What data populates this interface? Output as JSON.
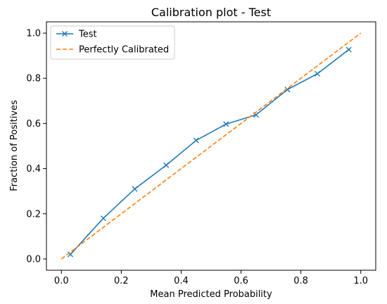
{
  "chart_data": {
    "type": "line",
    "title": "Calibration plot - Test",
    "xlabel": "Mean Predicted Probability",
    "ylabel": "Fraction of Positives",
    "xlim": [
      -0.05,
      1.05
    ],
    "ylim": [
      -0.05,
      1.05
    ],
    "xticks": [
      "0.0",
      "0.2",
      "0.4",
      "0.6",
      "0.8",
      "1.0"
    ],
    "yticks": [
      "0.0",
      "0.2",
      "0.4",
      "0.6",
      "0.8",
      "1.0"
    ],
    "grid": false,
    "legend_position": "top-left",
    "series": [
      {
        "name": "Test",
        "style": "solid-with-x-markers",
        "color": "#1f77b4",
        "x": [
          0.03,
          0.14,
          0.245,
          0.35,
          0.45,
          0.55,
          0.65,
          0.755,
          0.855,
          0.96
        ],
        "y": [
          0.02,
          0.18,
          0.31,
          0.415,
          0.525,
          0.597,
          0.638,
          0.75,
          0.82,
          0.927
        ]
      },
      {
        "name": "Perfectly Calibrated",
        "style": "dashed",
        "color": "#ff7f0e",
        "x": [
          0.0,
          1.0
        ],
        "y": [
          0.0,
          1.0
        ]
      }
    ]
  }
}
